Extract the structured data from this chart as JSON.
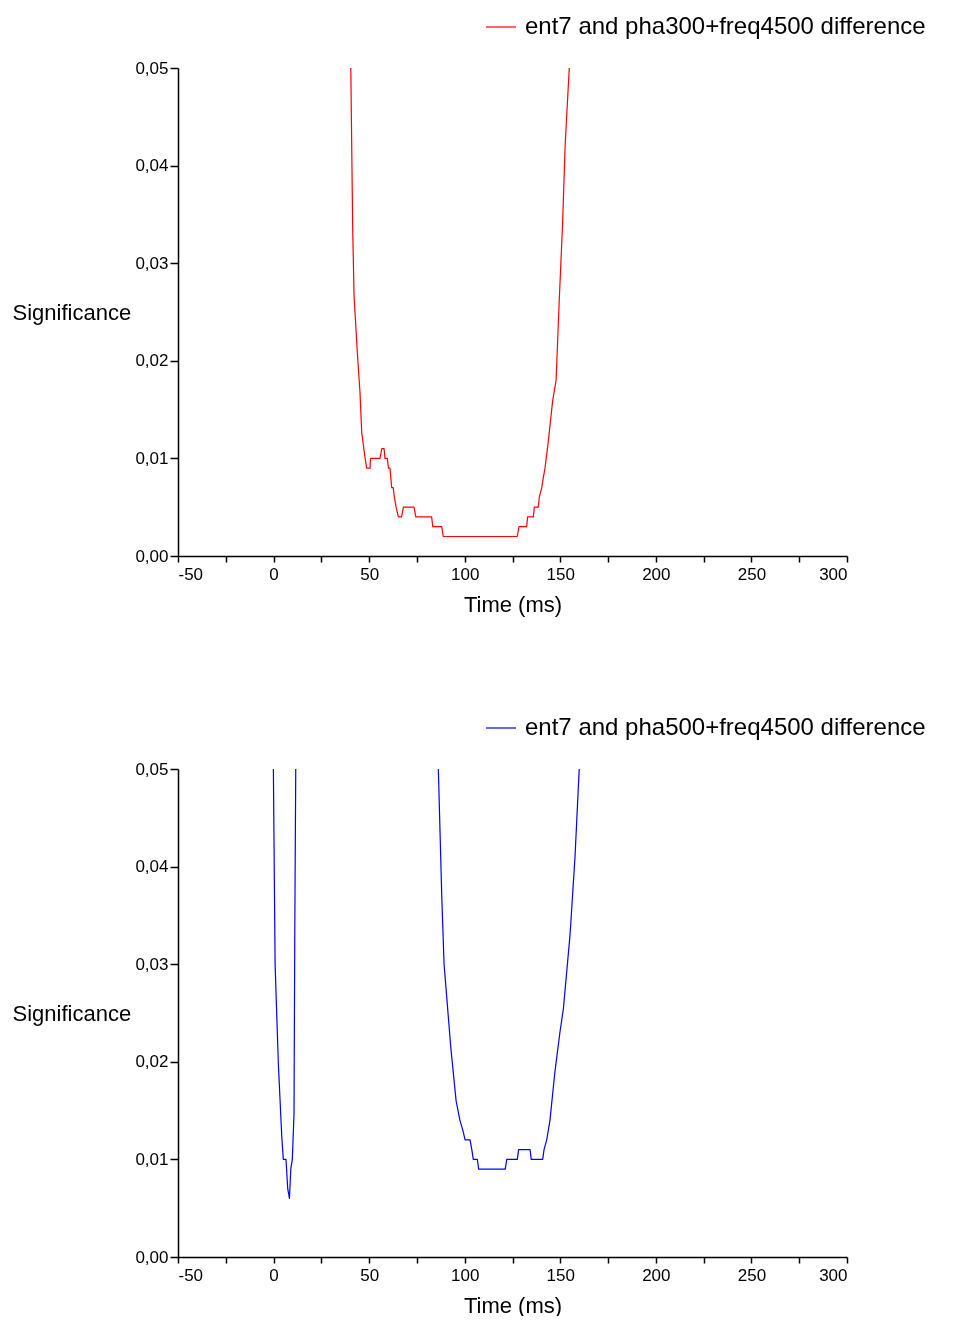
{
  "chart_data": [
    {
      "type": "line",
      "xlabel": "Time (ms)",
      "ylabel": "Significance",
      "legend": "top right",
      "xlim": [
        -50,
        300
      ],
      "ylim": [
        0,
        0.05
      ],
      "xticks": [
        -50,
        {
          "value": -25,
          "label": null
        },
        0,
        {
          "value": 25,
          "label": null
        },
        50,
        {
          "value": 75,
          "label": null
        },
        100,
        {
          "value": 125,
          "label": null
        },
        150,
        {
          "value": 175,
          "label": null
        },
        200,
        {
          "value": 225,
          "label": null
        },
        250,
        {
          "value": 275,
          "label": null
        },
        300
      ],
      "yticks": [
        {
          "value": 0,
          "label": "0,00"
        },
        {
          "value": 0.01,
          "label": "0,01"
        },
        {
          "value": 0.02,
          "label": "0,02"
        },
        {
          "value": 0.03,
          "label": "0,03"
        },
        {
          "value": 0.04,
          "label": "0,04"
        },
        {
          "value": 0.05,
          "label": "0,05"
        }
      ],
      "x": [
        40.4,
        41.4,
        42.1,
        43.8,
        45.2,
        46.1,
        47.9,
        48.7,
        50.5,
        50.7,
        55.7,
        56.6,
        57.8,
        58.3,
        59.5,
        60.1,
        60.9,
        61.8,
        62.6,
        63.2,
        64.1,
        65.3,
        67.0,
        67.9,
        73.5,
        74.4,
        82.7,
        83.3,
        88.0,
        88.8,
        127.5,
        128.4,
        132.4,
        132.9,
        135.9,
        136.4,
        138.5,
        139.0,
        140.3,
        141.1,
        142.0,
        143.7,
        146.0,
        147.8,
        149.5,
        151.2,
        152.5,
        154.7
      ],
      "series": [
        {
          "name": "ent7 and pha300+freq4500 difference",
          "color": "#ff0000",
          "values": [
            0.05,
            0.0335,
            0.0267,
            0.0209,
            0.0168,
            0.0127,
            0.01,
            0.009,
            0.009,
            0.01,
            0.01,
            0.011,
            0.011,
            0.01,
            0.01,
            0.009,
            0.009,
            0.007,
            0.007,
            0.006,
            0.005,
            0.004,
            0.004,
            0.005,
            0.005,
            0.004,
            0.004,
            0.003,
            0.003,
            0.002,
            0.002,
            0.003,
            0.003,
            0.004,
            0.004,
            0.005,
            0.005,
            0.006,
            0.007,
            0.008,
            0.009,
            0.0117,
            0.0159,
            0.018,
            0.0264,
            0.034,
            0.0419,
            0.05
          ]
        }
      ]
    },
    {
      "type": "line",
      "xlabel": "Time (ms)",
      "ylabel": "Significance",
      "legend": "top right",
      "xlim": [
        -50,
        300
      ],
      "ylim": [
        0,
        0.05
      ],
      "xticks": [
        -50,
        {
          "value": -25,
          "label": null
        },
        0,
        {
          "value": 25,
          "label": null
        },
        50,
        {
          "value": 75,
          "label": null
        },
        100,
        {
          "value": 125,
          "label": null
        },
        150,
        {
          "value": 175,
          "label": null
        },
        200,
        {
          "value": 225,
          "label": null
        },
        250,
        {
          "value": 275,
          "label": null
        },
        300
      ],
      "yticks": [
        {
          "value": 0,
          "label": "0,00"
        },
        {
          "value": 0.01,
          "label": "0,01"
        },
        {
          "value": 0.02,
          "label": "0,02"
        },
        {
          "value": 0.03,
          "label": "0,03"
        },
        {
          "value": 0.04,
          "label": "0,04"
        },
        {
          "value": 0.05,
          "label": "0,05"
        }
      ],
      "x": [
        -0.1,
        0.8,
        2.5,
        4.3,
        5.1,
        6.5,
        7.4,
        8.3,
        9.0,
        9.8,
        10.7,
        11.1,
        11.6,
        50,
        86.2,
        88.0,
        89.2,
        90.6,
        92.7,
        95.5,
        97.5,
        99.0,
        100.2,
        102.8,
        103.7,
        104.5,
        106.6,
        107.3,
        121.2,
        122.0,
        127.5,
        128.2,
        134.2,
        134.8,
        140.8,
        141.5,
        142.9,
        144.6,
        147.2,
        149.8,
        151.6,
        155.1,
        157.7,
        159.9
      ],
      "series": [
        {
          "name": "ent7 and pha500+freq4500 difference",
          "color": "#0000ff",
          "values": [
            0.05,
            0.03,
            0.0198,
            0.0123,
            0.01,
            0.01,
            0.007,
            0.006,
            0.009,
            0.01,
            0.0147,
            0.0334,
            0.05,
            null,
            0.05,
            0.0369,
            0.03,
            0.0266,
            0.0215,
            0.016,
            0.014,
            0.013,
            0.012,
            0.012,
            0.011,
            0.01,
            0.01,
            0.009,
            0.009,
            0.01,
            0.01,
            0.011,
            0.011,
            0.01,
            0.01,
            0.011,
            0.012,
            0.014,
            0.019,
            0.023,
            0.0254,
            0.033,
            0.041,
            0.05
          ]
        }
      ]
    }
  ]
}
